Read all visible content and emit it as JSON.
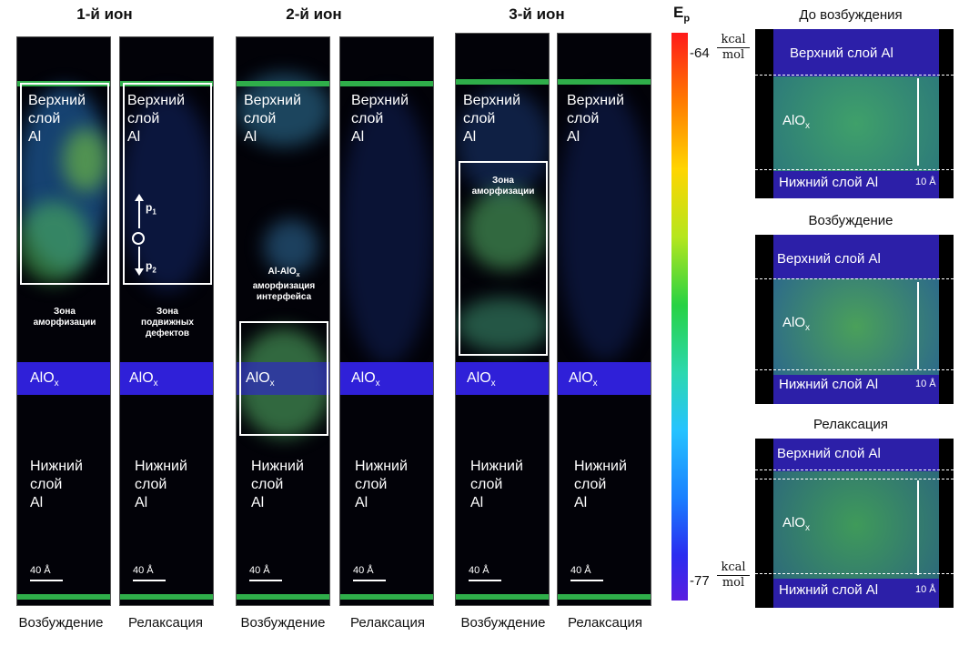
{
  "ions": [
    {
      "title": "1-й ион"
    },
    {
      "title": "2-й ион"
    },
    {
      "title": "3-й ион"
    }
  ],
  "panels": {
    "upper_layer": [
      "Верхний",
      "слой",
      "Al"
    ],
    "lower_layer": [
      "Нижний",
      "слой",
      "Al"
    ],
    "alox_main": "AlO",
    "alox_sub": "x",
    "scale": "40 Å",
    "captions": [
      "Возбуждение",
      "Релаксация",
      "Возбуждение",
      "Релаксация",
      "Возбуждение",
      "Релаксация"
    ]
  },
  "annotations": {
    "amorph_zone_1": [
      "Зона",
      "аморфизации"
    ],
    "mobile_defects": [
      "Зона",
      "подвижных",
      "дефектов"
    ],
    "p1": "p",
    "p1_sub": "1",
    "p2": "p",
    "p2_sub": "2",
    "interface": [
      "Al-AlO",
      "аморфизация",
      "интерфейса"
    ],
    "interface_sub": "x",
    "amorph_zone_3": [
      "Зона",
      "аморфизации"
    ]
  },
  "colorbar": {
    "title": "E",
    "title_sub": "p",
    "max": "-64",
    "min": "-77",
    "unit_num": "kcal",
    "unit_den": "mol"
  },
  "right_panels": [
    {
      "title": "До возбуждения"
    },
    {
      "title": "Возбуждение"
    },
    {
      "title": "Релаксация"
    }
  ],
  "right_labels": {
    "upper": "Верхний слой Al",
    "lower": "Нижний слой Al",
    "alox": "AlO",
    "alox_sub": "x",
    "scale": "10 Å"
  },
  "colors": {
    "alox_band": "#2f20d8",
    "top_band": "#2fae4a",
    "background": "#020208"
  }
}
